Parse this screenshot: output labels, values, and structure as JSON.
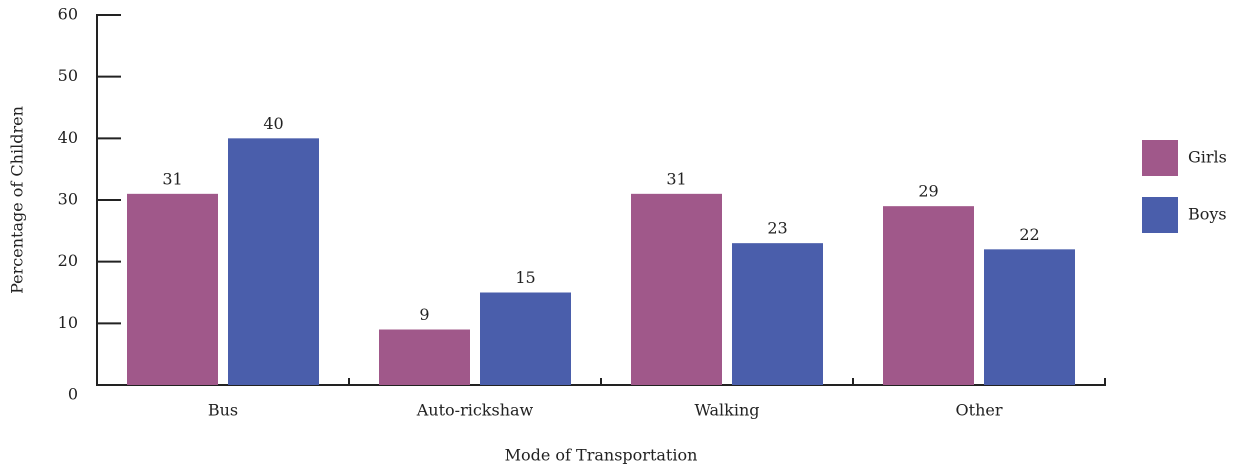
{
  "chart_data": {
    "type": "bar",
    "categories": [
      "Bus",
      "Auto-rickshaw",
      "Walking",
      "Other"
    ],
    "series": [
      {
        "name": "Girls",
        "color": "#a0588a",
        "values": [
          31,
          9,
          31,
          29
        ]
      },
      {
        "name": "Boys",
        "color": "#4a5eab",
        "values": [
          40,
          15,
          23,
          22
        ]
      }
    ],
    "x_label": "Mode of Transportation",
    "y_label": "Percentage of Children",
    "ylim": [
      0,
      60
    ],
    "yticks": [
      0,
      10,
      20,
      30,
      40,
      50,
      60
    ],
    "legend": "right"
  }
}
